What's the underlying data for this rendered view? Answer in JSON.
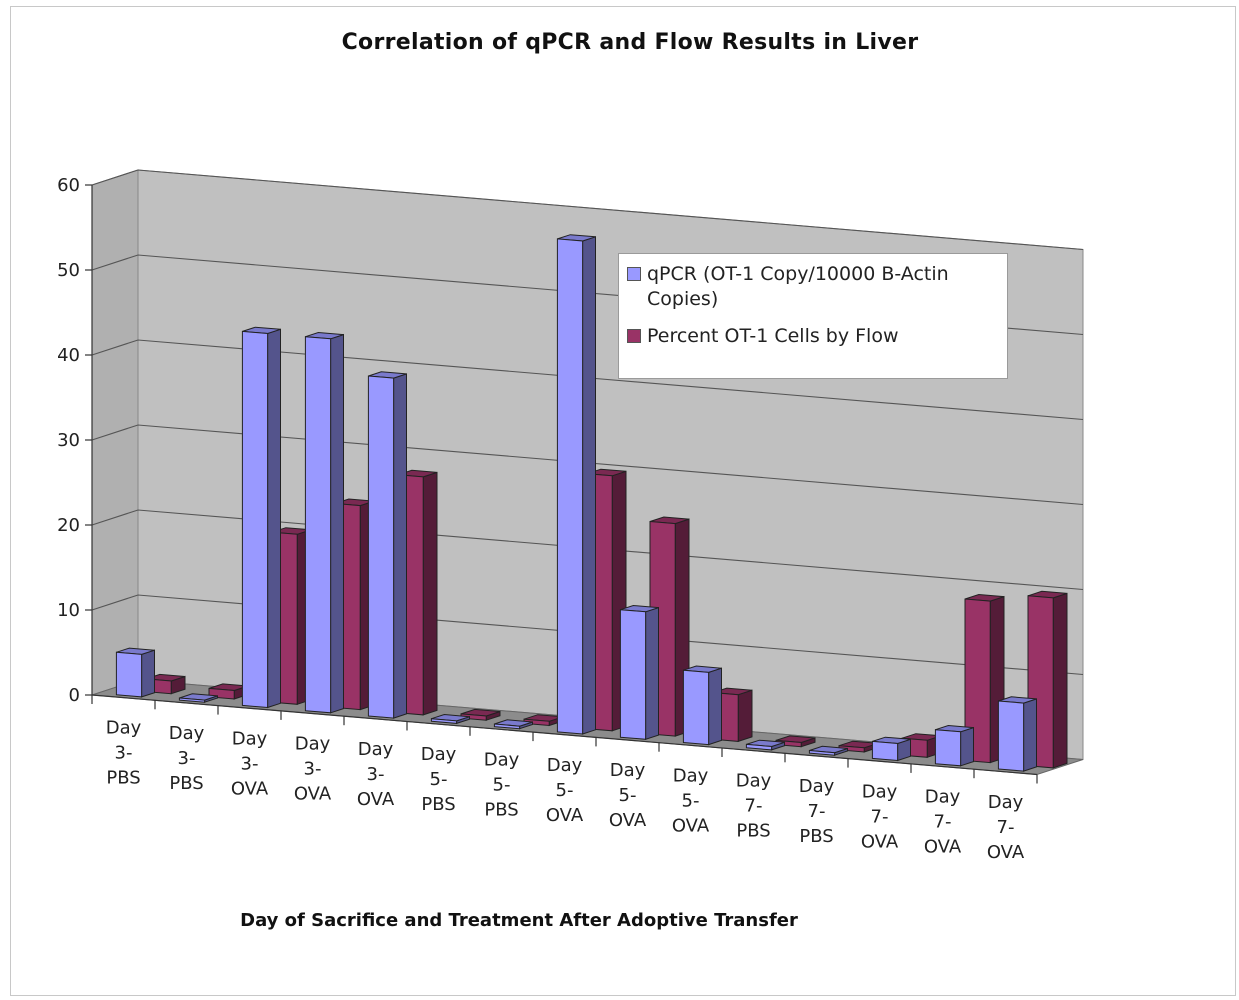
{
  "chart_data": {
    "type": "bar",
    "title": "Correlation of qPCR and Flow Results in Liver",
    "xlabel": "Day of Sacrifice and Treatment After Adoptive Transfer",
    "ylabel": "",
    "ylim": [
      0,
      60
    ],
    "yticks": [
      "0",
      "10",
      "20",
      "30",
      "40",
      "50",
      "60"
    ],
    "categories": [
      [
        "Day",
        "3-",
        "PBS"
      ],
      [
        "Day",
        "3-",
        "PBS"
      ],
      [
        "Day",
        "3-",
        "OVA"
      ],
      [
        "Day",
        "3-",
        "OVA"
      ],
      [
        "Day",
        "3-",
        "OVA"
      ],
      [
        "Day",
        "5-",
        "PBS"
      ],
      [
        "Day",
        "5-",
        "PBS"
      ],
      [
        "Day",
        "5-",
        "OVA"
      ],
      [
        "Day",
        "5-",
        "OVA"
      ],
      [
        "Day",
        "5-",
        "OVA"
      ],
      [
        "Day",
        "7-",
        "PBS"
      ],
      [
        "Day",
        "7-",
        "PBS"
      ],
      [
        "Day",
        "7-",
        "OVA"
      ],
      [
        "Day",
        "7-",
        "OVA"
      ],
      [
        "Day",
        "7-",
        "OVA"
      ]
    ],
    "series": [
      {
        "name": "qPCR (OT-1 Copy/10000 B-Actin Copies)",
        "color": "#9999ff",
        "values": [
          5,
          0.2,
          44,
          44,
          40,
          0.3,
          0.3,
          58,
          15,
          8.5,
          0.4,
          0.3,
          2,
          4,
          8
        ]
      },
      {
        "name": "Percent OT-1 Cells by Flow",
        "color": "#993366",
        "values": [
          1.5,
          1,
          20,
          24,
          28,
          0.5,
          0.5,
          30,
          25,
          5.5,
          0.5,
          0.5,
          2,
          19,
          20
        ]
      }
    ],
    "grid": true,
    "legend": "top-right",
    "style": "3d-column"
  }
}
